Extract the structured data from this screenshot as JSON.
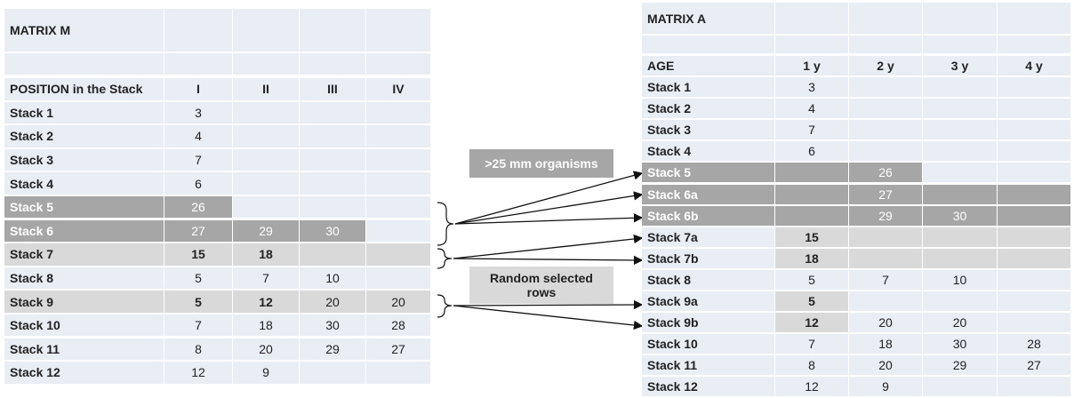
{
  "matrix_m": {
    "title": "MATRIX M",
    "header": [
      "POSITION in the Stack",
      "I",
      "II",
      "III",
      "IV"
    ],
    "rows": [
      [
        "Stack 1",
        3
      ],
      [
        "Stack 2",
        4
      ],
      [
        "Stack 3",
        7
      ],
      [
        "Stack 4",
        6
      ],
      [
        "Stack 5",
        26
      ],
      [
        "Stack 6",
        27,
        29,
        30
      ],
      [
        "Stack 7",
        15,
        18
      ],
      [
        "Stack 8",
        5,
        7,
        10
      ],
      [
        "Stack 9",
        5,
        12,
        20,
        20
      ],
      [
        "Stack 10",
        7,
        18,
        30,
        28
      ],
      [
        "Stack 11",
        8,
        20,
        29,
        27
      ],
      [
        "Stack 12",
        12,
        9
      ]
    ]
  },
  "matrix_a": {
    "title": "MATRIX A",
    "header": [
      "AGE",
      "1 y",
      "2 y",
      "3 y",
      "4 y"
    ],
    "rows": [
      [
        "Stack 1",
        3
      ],
      [
        "Stack 2",
        4
      ],
      [
        "Stack 3",
        7
      ],
      [
        "Stack 4",
        6
      ],
      [
        "Stack 5",
        null,
        26
      ],
      [
        "Stack 6a",
        null,
        27
      ],
      [
        "Stack 6b",
        null,
        29,
        30
      ],
      [
        "Stack 7a",
        15
      ],
      [
        "Stack 7b",
        18
      ],
      [
        "Stack 8",
        5,
        7,
        10
      ],
      [
        "Stack 9a",
        5
      ],
      [
        "Stack 9b",
        12,
        20,
        20
      ],
      [
        "Stack 10",
        7,
        18,
        30,
        28
      ],
      [
        "Stack 11",
        8,
        20,
        29,
        27
      ],
      [
        "Stack 12",
        12,
        9
      ]
    ]
  },
  "labels": {
    "organisms": ">25 mm organisms",
    "random": "Random selected rows"
  }
}
